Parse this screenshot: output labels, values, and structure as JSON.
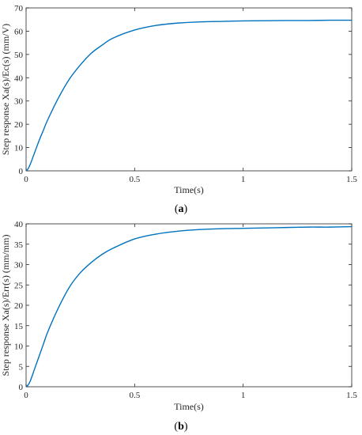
{
  "chart_data": [
    {
      "type": "line",
      "caption_open": "(",
      "caption_letter": "a",
      "caption_close": ")",
      "xlabel": "Time(s)",
      "ylabel": "Step response Xa(s)/Ec(s) (mm/V)",
      "xlim": [
        0,
        1.5
      ],
      "ylim": [
        0,
        70
      ],
      "xticks": [
        0,
        0.5,
        1,
        1.5
      ],
      "yticks": [
        0,
        10,
        20,
        30,
        40,
        50,
        60,
        70
      ],
      "grid": false,
      "color": "#0072BD",
      "series": [
        {
          "x": [
            0,
            0.01,
            0.02,
            0.04,
            0.06,
            0.08,
            0.1,
            0.15,
            0.2,
            0.25,
            0.3,
            0.35,
            0.4,
            0.5,
            0.6,
            0.7,
            0.8,
            0.9,
            1.0,
            1.1,
            1.2,
            1.3,
            1.4,
            1.5
          ],
          "y": [
            0,
            1.0,
            3.0,
            8.0,
            13.0,
            17.5,
            22.0,
            31.5,
            39.5,
            45.5,
            50.5,
            54.0,
            57.0,
            60.5,
            62.5,
            63.5,
            64.0,
            64.2,
            64.4,
            64.5,
            64.6,
            64.6,
            64.7,
            64.7
          ]
        }
      ]
    },
    {
      "type": "line",
      "caption_open": "(",
      "caption_letter": "b",
      "caption_close": ")",
      "xlabel": "Time(s)",
      "ylabel": "Step response Xa(s)/Err(s) (mm/mm)",
      "xlim": [
        0,
        1.5
      ],
      "ylim": [
        0,
        40
      ],
      "xticks": [
        0,
        0.5,
        1,
        1.5
      ],
      "yticks": [
        0,
        5,
        10,
        15,
        20,
        25,
        30,
        35,
        40
      ],
      "grid": false,
      "color": "#0072BD",
      "series": [
        {
          "x": [
            0,
            0.01,
            0.02,
            0.04,
            0.06,
            0.08,
            0.1,
            0.15,
            0.2,
            0.25,
            0.3,
            0.35,
            0.4,
            0.5,
            0.6,
            0.7,
            0.8,
            0.9,
            1.0,
            1.1,
            1.2,
            1.3,
            1.4,
            1.5
          ],
          "y": [
            0,
            0.5,
            1.5,
            4.5,
            7.5,
            10.5,
            13.5,
            19.5,
            24.5,
            28.0,
            30.5,
            32.5,
            34.0,
            36.3,
            37.5,
            38.2,
            38.6,
            38.8,
            38.9,
            39.0,
            39.1,
            39.2,
            39.2,
            39.3
          ]
        }
      ]
    }
  ]
}
